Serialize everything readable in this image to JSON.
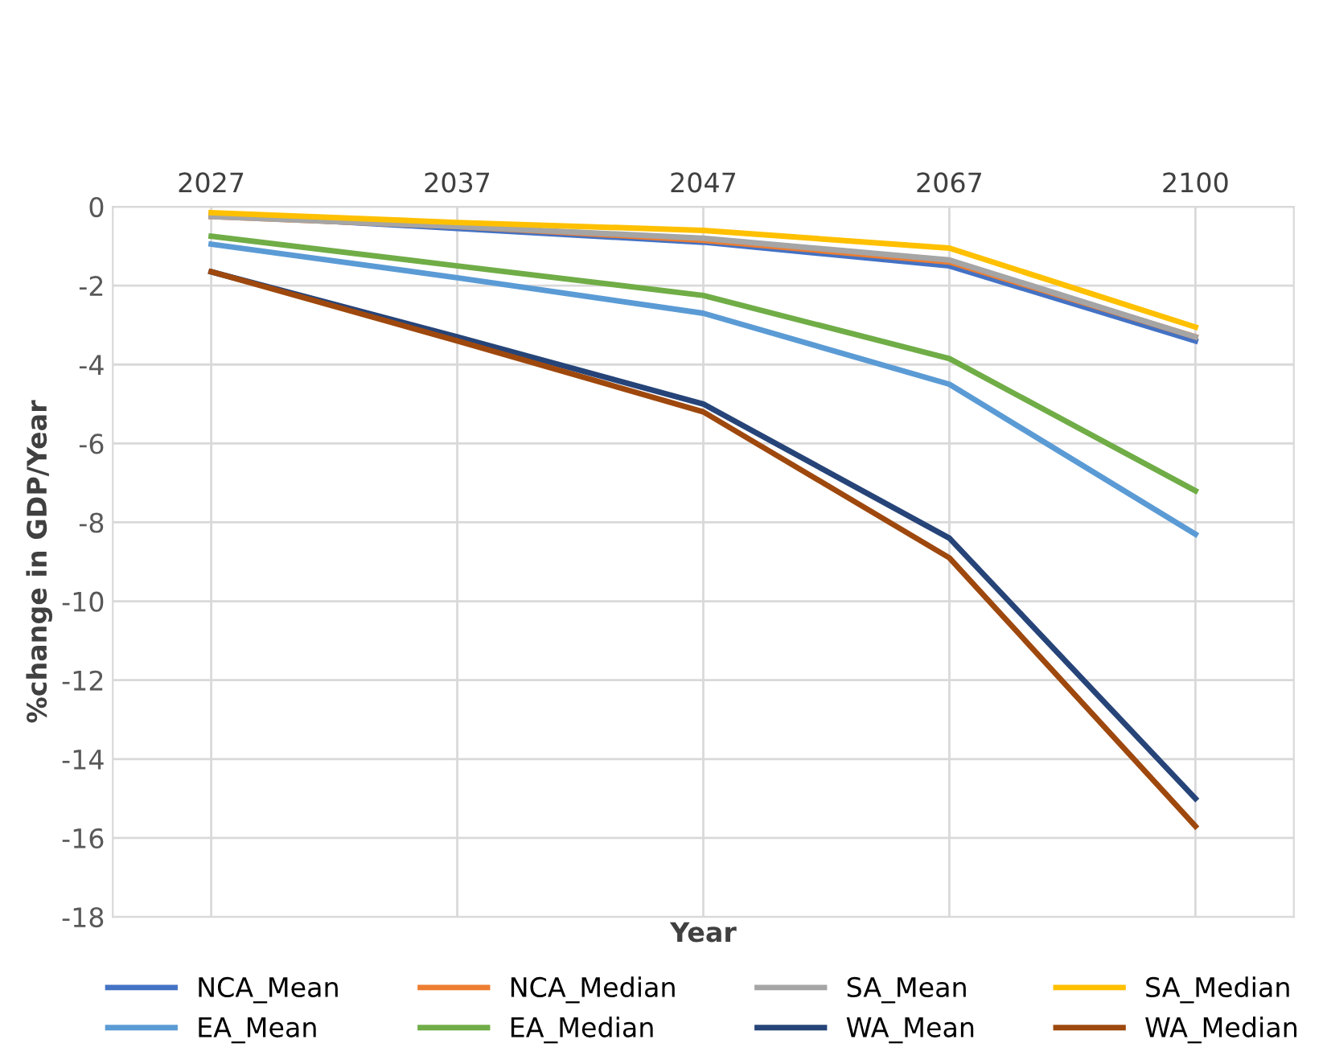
{
  "chart_data": {
    "type": "line",
    "xlabel": "Year",
    "ylabel": "%change in GDP/Year",
    "categories": [
      "2027",
      "2037",
      "2047",
      "2067",
      "2100"
    ],
    "series": [
      {
        "name": "NCA_Mean",
        "color": "#4472c4",
        "values": [
          -0.2,
          -0.55,
          -0.9,
          -1.5,
          -3.4
        ]
      },
      {
        "name": "NCA_Median",
        "color": "#ed7d31",
        "values": [
          -0.25,
          -0.5,
          -0.85,
          -1.4,
          -3.3
        ]
      },
      {
        "name": "SA_Mean",
        "color": "#a5a5a5",
        "values": [
          -0.25,
          -0.5,
          -0.8,
          -1.35,
          -3.3
        ]
      },
      {
        "name": "SA_Median",
        "color": "#ffc000",
        "values": [
          -0.15,
          -0.4,
          -0.6,
          -1.05,
          -3.05
        ]
      },
      {
        "name": "EA_Mean",
        "color": "#5b9bd5",
        "values": [
          -0.95,
          -1.8,
          -2.7,
          -4.5,
          -8.3
        ]
      },
      {
        "name": "EA_Median",
        "color": "#70ad47",
        "values": [
          -0.75,
          -1.5,
          -2.25,
          -3.85,
          -7.2
        ]
      },
      {
        "name": "WA_Mean",
        "color": "#264478",
        "values": [
          -1.65,
          -3.3,
          -5.0,
          -8.4,
          -15.0
        ]
      },
      {
        "name": "WA_Median",
        "color": "#9e480e",
        "values": [
          -1.65,
          -3.4,
          -5.2,
          -8.9,
          -15.7
        ]
      }
    ],
    "ylim": [
      -18,
      0
    ],
    "yticks": [
      -18,
      -16,
      -14,
      -12,
      -10,
      -8,
      -6,
      -4,
      -2,
      0
    ],
    "grid": true,
    "legend": "bottom",
    "marker": "none",
    "line_style": "solid"
  }
}
